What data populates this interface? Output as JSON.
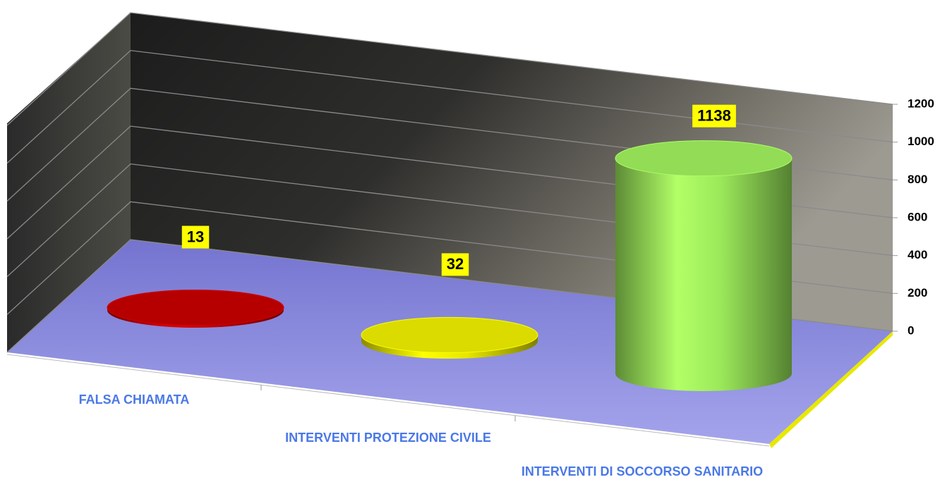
{
  "chart_data": {
    "type": "cylinder",
    "categories": [
      "FALSA CHIAMATA",
      "INTERVENTI PROTEZIONE CIVILE",
      "INTERVENTI DI SOCCORSO SANITARIO"
    ],
    "values": [
      13,
      32,
      1138
    ],
    "colors": [
      "#c00000",
      "#e6e600",
      "#9be85a"
    ],
    "ylim": [
      0,
      1200
    ],
    "yticks": [
      0,
      200,
      400,
      600,
      800,
      1000,
      1200
    ],
    "grid": true
  }
}
